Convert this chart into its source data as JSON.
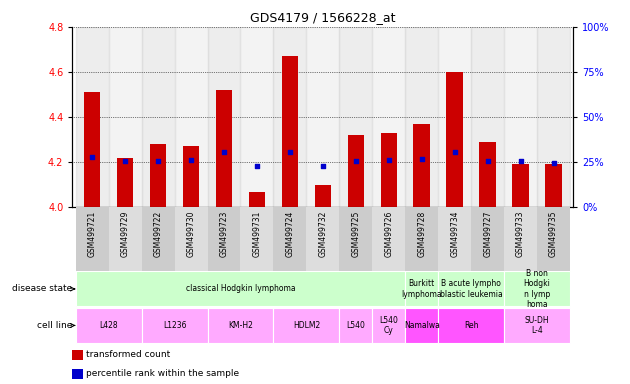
{
  "title": "GDS4179 / 1566228_at",
  "samples": [
    "GSM499721",
    "GSM499729",
    "GSM499722",
    "GSM499730",
    "GSM499723",
    "GSM499731",
    "GSM499724",
    "GSM499732",
    "GSM499725",
    "GSM499726",
    "GSM499728",
    "GSM499734",
    "GSM499727",
    "GSM499733",
    "GSM499735"
  ],
  "transformed_count": [
    4.51,
    4.22,
    4.28,
    4.27,
    4.52,
    4.07,
    4.67,
    4.1,
    4.32,
    4.33,
    4.37,
    4.6,
    4.29,
    4.19,
    4.19
  ],
  "percentile_rank_left": [
    4.225,
    4.205,
    4.205,
    4.21,
    4.245,
    4.185,
    4.245,
    4.185,
    4.205,
    4.21,
    4.215,
    4.245,
    4.205,
    4.205,
    4.195
  ],
  "bar_color": "#cc0000",
  "dot_color": "#0000cc",
  "ylim_left": [
    4.0,
    4.8
  ],
  "yticks_left": [
    4.0,
    4.2,
    4.4,
    4.6,
    4.8
  ],
  "yticks_right": [
    0,
    25,
    50,
    75,
    100
  ],
  "ylim_right": [
    0,
    100
  ],
  "disease_state_groups": [
    {
      "label": "classical Hodgkin lymphoma",
      "start": 0,
      "end": 10,
      "color": "#ccffcc"
    },
    {
      "label": "Burkitt\nlymphoma",
      "start": 10,
      "end": 11,
      "color": "#ccffcc"
    },
    {
      "label": "B acute lympho\nblastic leukemia",
      "start": 11,
      "end": 13,
      "color": "#ccffcc"
    },
    {
      "label": "B non\nHodgki\nn lymp\nhoma",
      "start": 13,
      "end": 15,
      "color": "#ccffcc"
    }
  ],
  "cell_line_groups": [
    {
      "label": "L428",
      "start": 0,
      "end": 2,
      "color": "#ffaaff"
    },
    {
      "label": "L1236",
      "start": 2,
      "end": 4,
      "color": "#ffaaff"
    },
    {
      "label": "KM-H2",
      "start": 4,
      "end": 6,
      "color": "#ffaaff"
    },
    {
      "label": "HDLM2",
      "start": 6,
      "end": 8,
      "color": "#ffaaff"
    },
    {
      "label": "L540",
      "start": 8,
      "end": 9,
      "color": "#ffaaff"
    },
    {
      "label": "L540\nCy",
      "start": 9,
      "end": 10,
      "color": "#ffaaff"
    },
    {
      "label": "Namalwa",
      "start": 10,
      "end": 11,
      "color": "#ff55ff"
    },
    {
      "label": "Reh",
      "start": 11,
      "end": 13,
      "color": "#ff55ff"
    },
    {
      "label": "SU-DH\nL-4",
      "start": 13,
      "end": 15,
      "color": "#ffaaff"
    }
  ],
  "legend_items": [
    {
      "label": "transformed count",
      "color": "#cc0000"
    },
    {
      "label": "percentile rank within the sample",
      "color": "#0000cc"
    }
  ],
  "xtick_bg_even": "#cccccc",
  "xtick_bg_odd": "#dddddd"
}
